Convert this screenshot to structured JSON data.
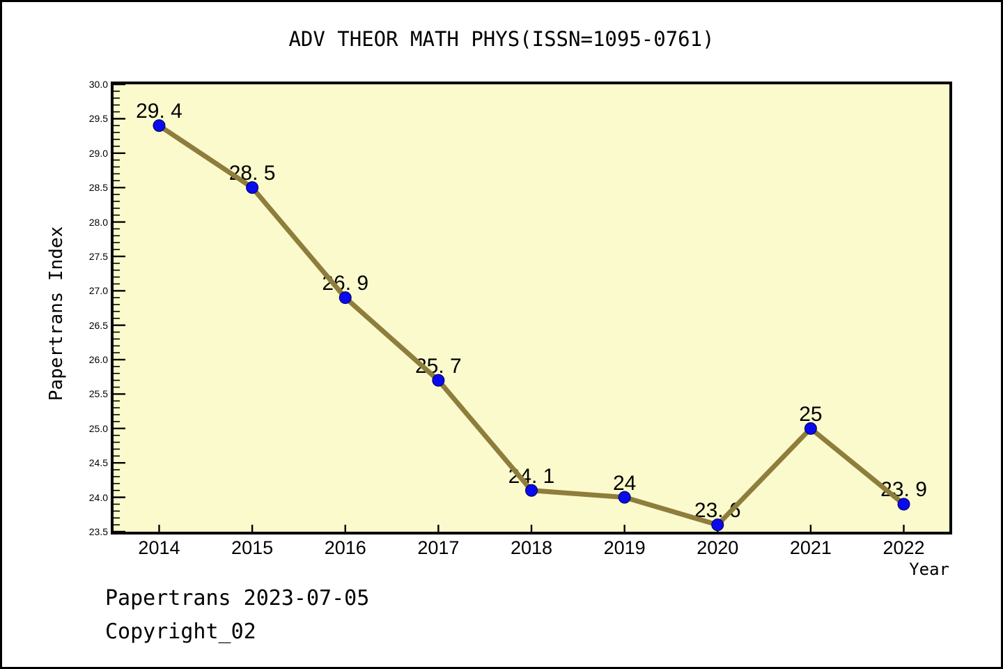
{
  "footer": {
    "date_line": "Papertrans 2023-07-05",
    "copyright_line": "Copyright_02"
  },
  "chart_data": {
    "type": "line",
    "title": "ADV THEOR MATH PHYS(ISSN=1095-0761)",
    "xlabel": "Year",
    "ylabel": "Papertrans Index",
    "x": [
      2014,
      2015,
      2016,
      2017,
      2018,
      2019,
      2020,
      2021,
      2022
    ],
    "values": [
      29.4,
      28.5,
      26.9,
      25.7,
      24.1,
      24,
      23.6,
      25,
      23.9
    ],
    "point_labels": [
      "29. 4",
      "28. 5",
      "26. 9",
      "25. 7",
      "24. 1",
      "24",
      "23. 6",
      "25",
      "23. 9"
    ],
    "xlim": [
      2013.51,
      2022.49
    ],
    "ylim": [
      23.5,
      30.0
    ],
    "y_major_step": 0.5,
    "y_minor_step": 0.1,
    "grid": false,
    "legend": false,
    "style": {
      "line_color": "#8E7D3C",
      "line_width": 7,
      "marker_color": "#0A0AEE",
      "marker_edge_color": "#000050",
      "marker_radius": 8.5,
      "plot_bg": "#FAFACD",
      "axis_color": "#000000"
    }
  }
}
